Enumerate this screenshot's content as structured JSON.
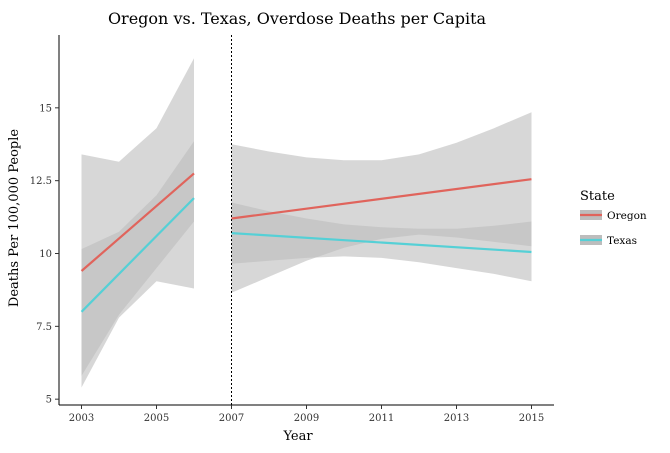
{
  "chart_data": {
    "type": "line",
    "title": "Oregon vs. Texas, Overdose Deaths per Capita",
    "xlabel": "Year",
    "ylabel": "Deaths Per 100,000 People",
    "xlim": [
      2002.4,
      2015.6
    ],
    "ylim": [
      4.8,
      17.5
    ],
    "x_ticks": [
      2003,
      2005,
      2007,
      2009,
      2011,
      2013,
      2015
    ],
    "y_ticks": [
      5,
      7.5,
      10,
      12.5,
      15
    ],
    "y_tick_labels": [
      "5",
      "7.5",
      "10",
      "12.5",
      "15"
    ],
    "vline_x": 2007,
    "grid": false,
    "legend": {
      "title": "State",
      "position": "right"
    },
    "series": [
      {
        "name": "Oregon",
        "color": "#e0645c",
        "segments": [
          {
            "x": [
              2003,
              2006
            ],
            "y": [
              9.4,
              12.75
            ],
            "band_x": [
              2003,
              2004,
              2005,
              2006
            ],
            "band_lower": [
              5.8,
              7.9,
              9.5,
              11.1
            ],
            "band_upper": [
              13.4,
              13.15,
              14.3,
              16.7
            ]
          },
          {
            "x": [
              2007,
              2015
            ],
            "y": [
              11.2,
              12.55
            ],
            "band_x": [
              2007,
              2008,
              2009,
              2010,
              2011,
              2012,
              2013,
              2014,
              2015
            ],
            "band_lower": [
              8.65,
              9.2,
              9.75,
              10.2,
              10.5,
              10.65,
              10.55,
              10.4,
              10.25
            ],
            "band_upper": [
              13.75,
              13.5,
              13.3,
              13.2,
              13.2,
              13.4,
              13.8,
              14.3,
              14.85
            ]
          }
        ]
      },
      {
        "name": "Texas",
        "color": "#55d0d6",
        "segments": [
          {
            "x": [
              2003,
              2006
            ],
            "y": [
              8.0,
              11.9
            ],
            "band_x": [
              2003,
              2004,
              2005,
              2006
            ],
            "band_lower": [
              5.4,
              7.8,
              9.05,
              8.8
            ],
            "band_upper": [
              10.15,
              10.75,
              12.0,
              13.85
            ]
          },
          {
            "x": [
              2007,
              2015
            ],
            "y": [
              10.7,
              10.05
            ],
            "band_x": [
              2007,
              2008,
              2009,
              2010,
              2011,
              2012,
              2013,
              2014,
              2015
            ],
            "band_lower": [
              9.65,
              9.75,
              9.85,
              9.9,
              9.85,
              9.7,
              9.5,
              9.3,
              9.05
            ],
            "band_upper": [
              11.75,
              11.45,
              11.2,
              11.0,
              10.9,
              10.85,
              10.85,
              10.95,
              11.1
            ]
          }
        ]
      }
    ],
    "band_color": "#bdbdbd"
  }
}
